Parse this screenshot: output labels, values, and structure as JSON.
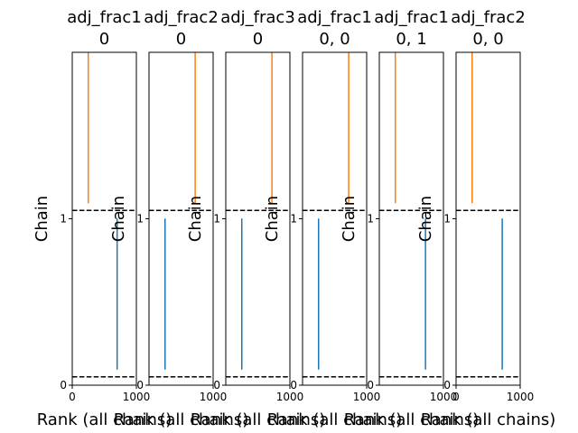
{
  "chart_data": {
    "type": "rank-plot",
    "xlim": [
      0,
      1000
    ],
    "ylim": [
      0,
      2
    ],
    "yticks": [
      0,
      1
    ],
    "ytick_labels": [
      "0",
      "1"
    ],
    "ylabel": "Chain",
    "reference_lines": [
      0.05,
      1.05
    ],
    "series_colors": [
      "#1f77b4",
      "#ff7f0e"
    ],
    "panels": [
      {
        "title": "adj_frac1\n0",
        "xlabel": "Rank (all chains)",
        "xticks": [
          {
            "value": 0,
            "label": "0"
          },
          {
            "value": 1000,
            "label": "1000"
          }
        ],
        "chains": [
          {
            "chain": 0,
            "x": 700
          },
          {
            "chain": 1,
            "x": 250
          }
        ]
      },
      {
        "title": "adj_frac2\n0",
        "xlabel": "Rank (all chains)",
        "xticks": [
          {
            "value": 1000,
            "label": "1000"
          }
        ],
        "chains": [
          {
            "chain": 0,
            "x": 250
          },
          {
            "chain": 1,
            "x": 720
          }
        ]
      },
      {
        "title": "adj_frac3\n0",
        "xlabel": "Rank (all chains)",
        "xticks": [
          {
            "value": 1000,
            "label": "1000"
          }
        ],
        "chains": [
          {
            "chain": 0,
            "x": 250
          },
          {
            "chain": 1,
            "x": 720
          }
        ]
      },
      {
        "title": "adj_frac1\n0, 0",
        "xlabel": "Rank (all chains)",
        "xticks": [
          {
            "value": 1000,
            "label": "1000"
          }
        ],
        "chains": [
          {
            "chain": 0,
            "x": 250
          },
          {
            "chain": 1,
            "x": 720
          }
        ]
      },
      {
        "title": "adj_frac1\n0, 1",
        "xlabel": "Rank (all chains)",
        "xticks": [
          {
            "value": 1000,
            "label": "1000"
          }
        ],
        "chains": [
          {
            "chain": 0,
            "x": 720
          },
          {
            "chain": 1,
            "x": 250
          }
        ]
      },
      {
        "title": "adj_frac2\n0, 0",
        "xlabel": "Rank (all chains)",
        "xticks": [
          {
            "value": 0,
            "label": "0"
          },
          {
            "value": 1000,
            "label": "1000"
          }
        ],
        "chains": [
          {
            "chain": 0,
            "x": 720
          },
          {
            "chain": 1,
            "x": 250
          }
        ]
      }
    ]
  }
}
